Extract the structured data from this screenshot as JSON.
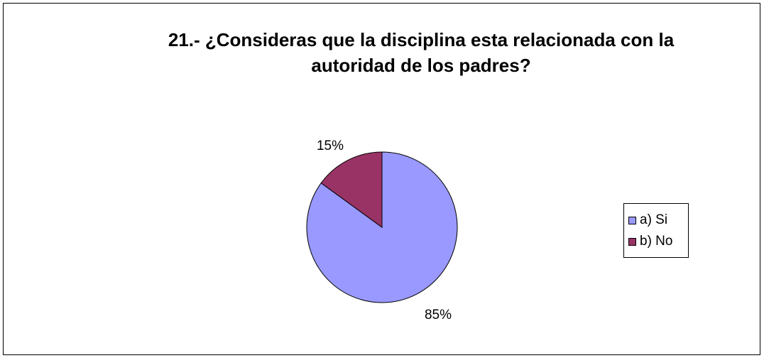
{
  "chart_data": {
    "type": "pie",
    "title": "21.- ¿Consideras que la disciplina esta relacionada con la autoridad de los padres?",
    "title_lines": [
      "21.- ¿Consideras que la disciplina esta relacionada con la",
      "autoridad de los padres?"
    ],
    "categories": [
      "a) Si",
      "b) No"
    ],
    "values": [
      85,
      15
    ],
    "data_labels": [
      "85%",
      "15%"
    ],
    "colors": [
      "#9999FF",
      "#993366"
    ],
    "legend_position": "right",
    "start_angle": "12 o'clock",
    "direction": "clockwise"
  }
}
